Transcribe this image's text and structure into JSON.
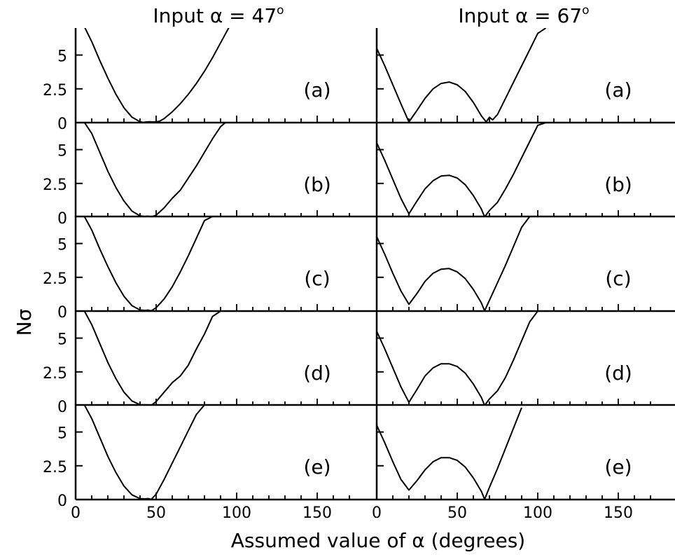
{
  "figure": {
    "ylabel": "Nσ",
    "xlabel": "Assumed value of α (degrees)",
    "columns": [
      {
        "title": "Input α = 47",
        "title_sup": "o"
      },
      {
        "title": "Input α = 67",
        "title_sup": "o"
      }
    ]
  },
  "chart_data": {
    "type": "line",
    "layout": "small-multiples 5 rows x 2 columns, shared x axis",
    "xlim": [
      0,
      180
    ],
    "ylim": [
      0,
      7
    ],
    "xticks": [
      0,
      50,
      100,
      150
    ],
    "yticks": [
      0,
      2.5,
      5
    ],
    "ytick_labels": [
      "0",
      "2.5",
      "5"
    ],
    "grid": false,
    "line_color": "#000000",
    "panels": [
      {
        "column": "Input α = 47",
        "label": "(a)",
        "x": [
          0,
          5,
          10,
          15,
          20,
          25,
          30,
          35,
          40,
          42,
          44,
          46,
          48,
          50,
          52,
          55,
          60,
          65,
          70,
          75,
          80,
          85,
          90,
          95,
          100
        ],
        "y": [
          7.8,
          7.2,
          6.0,
          4.6,
          3.3,
          2.1,
          1.1,
          0.4,
          0.06,
          0.02,
          0.05,
          0.07,
          0.05,
          0.07,
          0.1,
          0.3,
          0.8,
          1.4,
          2.1,
          2.9,
          3.8,
          4.8,
          5.9,
          7.0,
          7.8
        ]
      },
      {
        "column": "Input α = 47",
        "label": "(b)",
        "x": [
          5,
          10,
          15,
          20,
          25,
          30,
          35,
          40,
          43,
          45,
          47,
          50,
          55,
          60,
          65,
          70,
          75,
          80,
          85,
          90,
          95
        ],
        "y": [
          7.1,
          6.2,
          4.8,
          3.4,
          2.2,
          1.2,
          0.45,
          0.1,
          0.05,
          0.07,
          0.02,
          0.15,
          0.7,
          1.4,
          2.0,
          2.9,
          3.8,
          4.8,
          5.8,
          6.7,
          7.2
        ]
      },
      {
        "column": "Input α = 47",
        "label": "(c)",
        "x": [
          5,
          10,
          15,
          20,
          25,
          30,
          35,
          40,
          43,
          45,
          47,
          50,
          55,
          60,
          65,
          70,
          75,
          80,
          85,
          88
        ],
        "y": [
          7.1,
          6.0,
          4.6,
          3.3,
          2.1,
          1.1,
          0.4,
          0.08,
          0.05,
          0.07,
          0.02,
          0.25,
          0.9,
          1.8,
          2.9,
          4.1,
          5.4,
          6.7,
          7.0,
          7.0
        ]
      },
      {
        "column": "Input α = 47",
        "label": "(d)",
        "x": [
          5,
          10,
          15,
          20,
          25,
          30,
          35,
          40,
          45,
          47,
          50,
          55,
          60,
          65,
          70,
          75,
          80,
          85,
          90
        ],
        "y": [
          7.1,
          6.0,
          4.6,
          3.2,
          2.0,
          1.0,
          0.35,
          0.07,
          0.05,
          0.02,
          0.3,
          1.0,
          1.7,
          2.2,
          3.0,
          4.2,
          5.3,
          6.6,
          7.0
        ]
      },
      {
        "column": "Input α = 47",
        "label": "(e)",
        "x": [
          5,
          10,
          15,
          20,
          25,
          30,
          35,
          40,
          43,
          45,
          47,
          50,
          55,
          60,
          65,
          70,
          75,
          80,
          85
        ],
        "y": [
          7.1,
          6.0,
          4.6,
          3.2,
          2.0,
          1.0,
          0.35,
          0.07,
          0.05,
          0.07,
          0.02,
          0.4,
          1.5,
          2.7,
          3.9,
          5.1,
          6.3,
          7.0,
          7.0
        ]
      },
      {
        "column": "Input α = 67",
        "label": "(a)",
        "x": [
          0,
          5,
          10,
          15,
          20,
          25,
          30,
          35,
          40,
          45,
          50,
          55,
          60,
          65,
          68,
          70,
          72,
          75,
          80,
          85,
          90,
          95,
          100,
          105
        ],
        "y": [
          5.5,
          4.2,
          2.8,
          1.4,
          0.05,
          0.9,
          1.8,
          2.5,
          2.9,
          3.0,
          2.8,
          2.3,
          1.5,
          0.5,
          0.05,
          0.4,
          0.2,
          0.6,
          1.8,
          3.0,
          4.2,
          5.4,
          6.6,
          7.0
        ]
      },
      {
        "column": "Input α = 67",
        "label": "(b)",
        "x": [
          0,
          5,
          10,
          15,
          20,
          25,
          30,
          35,
          40,
          45,
          50,
          55,
          60,
          65,
          67,
          70,
          75,
          80,
          85,
          90,
          95,
          100,
          105
        ],
        "y": [
          5.5,
          4.2,
          2.8,
          1.4,
          0.25,
          1.2,
          2.1,
          2.7,
          3.05,
          3.1,
          2.9,
          2.4,
          1.6,
          0.6,
          0.02,
          0.5,
          1.1,
          2.1,
          3.2,
          4.4,
          5.6,
          6.8,
          7.0
        ]
      },
      {
        "column": "Input α = 67",
        "label": "(c)",
        "x": [
          0,
          5,
          10,
          15,
          20,
          25,
          30,
          35,
          40,
          45,
          50,
          55,
          60,
          65,
          67,
          70,
          75,
          80,
          85,
          90,
          95
        ],
        "y": [
          5.5,
          4.2,
          2.8,
          1.5,
          0.5,
          1.3,
          2.2,
          2.8,
          3.1,
          3.15,
          2.9,
          2.4,
          1.6,
          0.6,
          0.02,
          0.8,
          2.1,
          3.4,
          4.8,
          6.2,
          7.0
        ]
      },
      {
        "column": "Input α = 67",
        "label": "(d)",
        "x": [
          0,
          5,
          10,
          15,
          20,
          25,
          30,
          35,
          40,
          45,
          50,
          55,
          60,
          65,
          67,
          70,
          75,
          80,
          85,
          90,
          95,
          100
        ],
        "y": [
          5.5,
          4.2,
          2.8,
          1.4,
          0.25,
          1.2,
          2.2,
          2.8,
          3.1,
          3.1,
          2.9,
          2.4,
          1.6,
          0.6,
          0.02,
          0.5,
          1.1,
          2.1,
          3.4,
          4.8,
          6.2,
          7.0
        ]
      },
      {
        "column": "Input α = 67",
        "label": "(e)",
        "x": [
          0,
          5,
          10,
          15,
          20,
          25,
          30,
          35,
          40,
          45,
          50,
          55,
          60,
          65,
          67,
          70,
          75,
          80,
          85,
          90
        ],
        "y": [
          5.5,
          4.2,
          2.8,
          1.5,
          0.7,
          1.4,
          2.2,
          2.8,
          3.1,
          3.1,
          2.9,
          2.4,
          1.6,
          0.6,
          0.02,
          0.9,
          2.3,
          3.8,
          5.3,
          6.8
        ]
      }
    ]
  }
}
